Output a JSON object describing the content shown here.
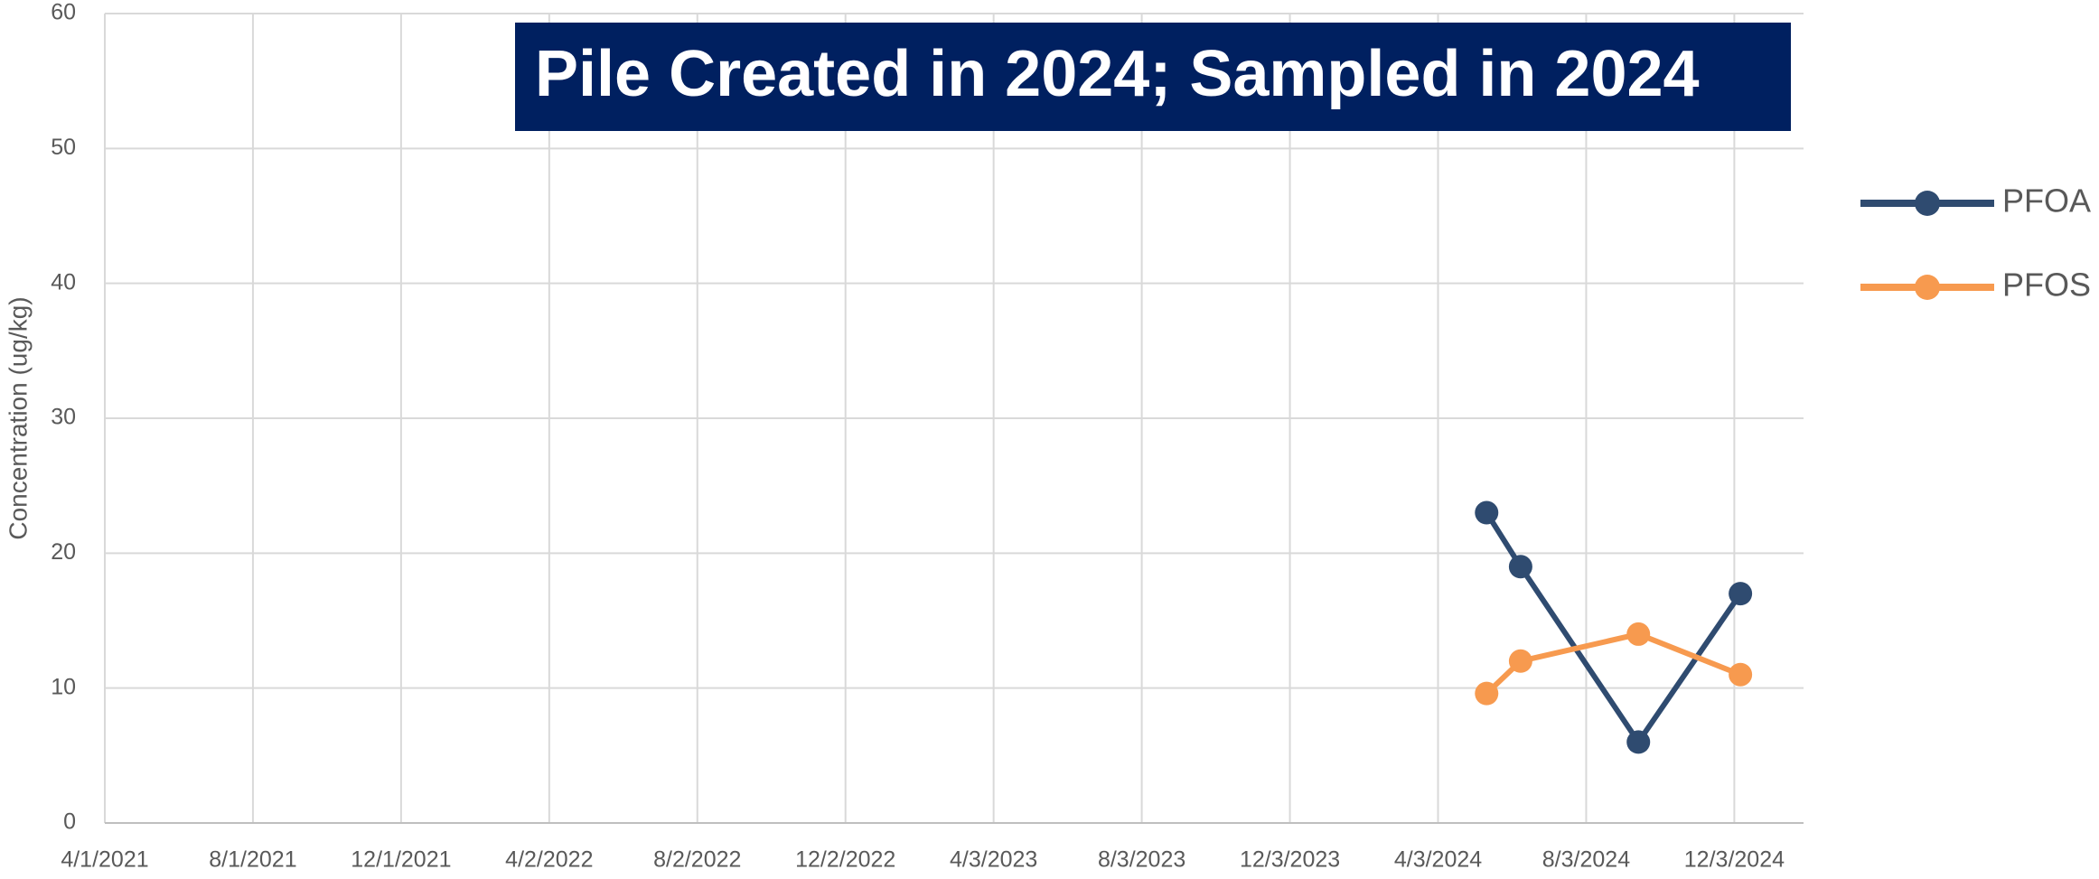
{
  "chart_data": {
    "type": "line",
    "title": "Pile Created in 2024; Sampled in 2024",
    "y_label": "Concentration (ug/kg)",
    "x": [
      "5/13/2024",
      "6/10/2024",
      "9/15/2024",
      "12/8/2024"
    ],
    "series": [
      {
        "name": "PFOA",
        "color": "#2f4b70",
        "values": [
          23,
          19,
          6,
          17
        ]
      },
      {
        "name": "PFOS",
        "color": "#f79a4f",
        "values": [
          9.6,
          12,
          14,
          11
        ]
      }
    ],
    "xlim": [
      "4/1/2021",
      "1/29/2025"
    ],
    "xticks": [
      "4/1/2021",
      "8/1/2021",
      "12/1/2021",
      "4/2/2022",
      "8/2/2022",
      "12/2/2022",
      "4/3/2023",
      "8/3/2023",
      "12/3/2023",
      "4/3/2024",
      "8/3/2024",
      "12/3/2024"
    ],
    "ylim": [
      0,
      60
    ],
    "yticks": [
      0,
      10,
      20,
      30,
      40,
      50,
      60
    ],
    "grid": true,
    "legend": "right",
    "title_background": "#002060"
  }
}
